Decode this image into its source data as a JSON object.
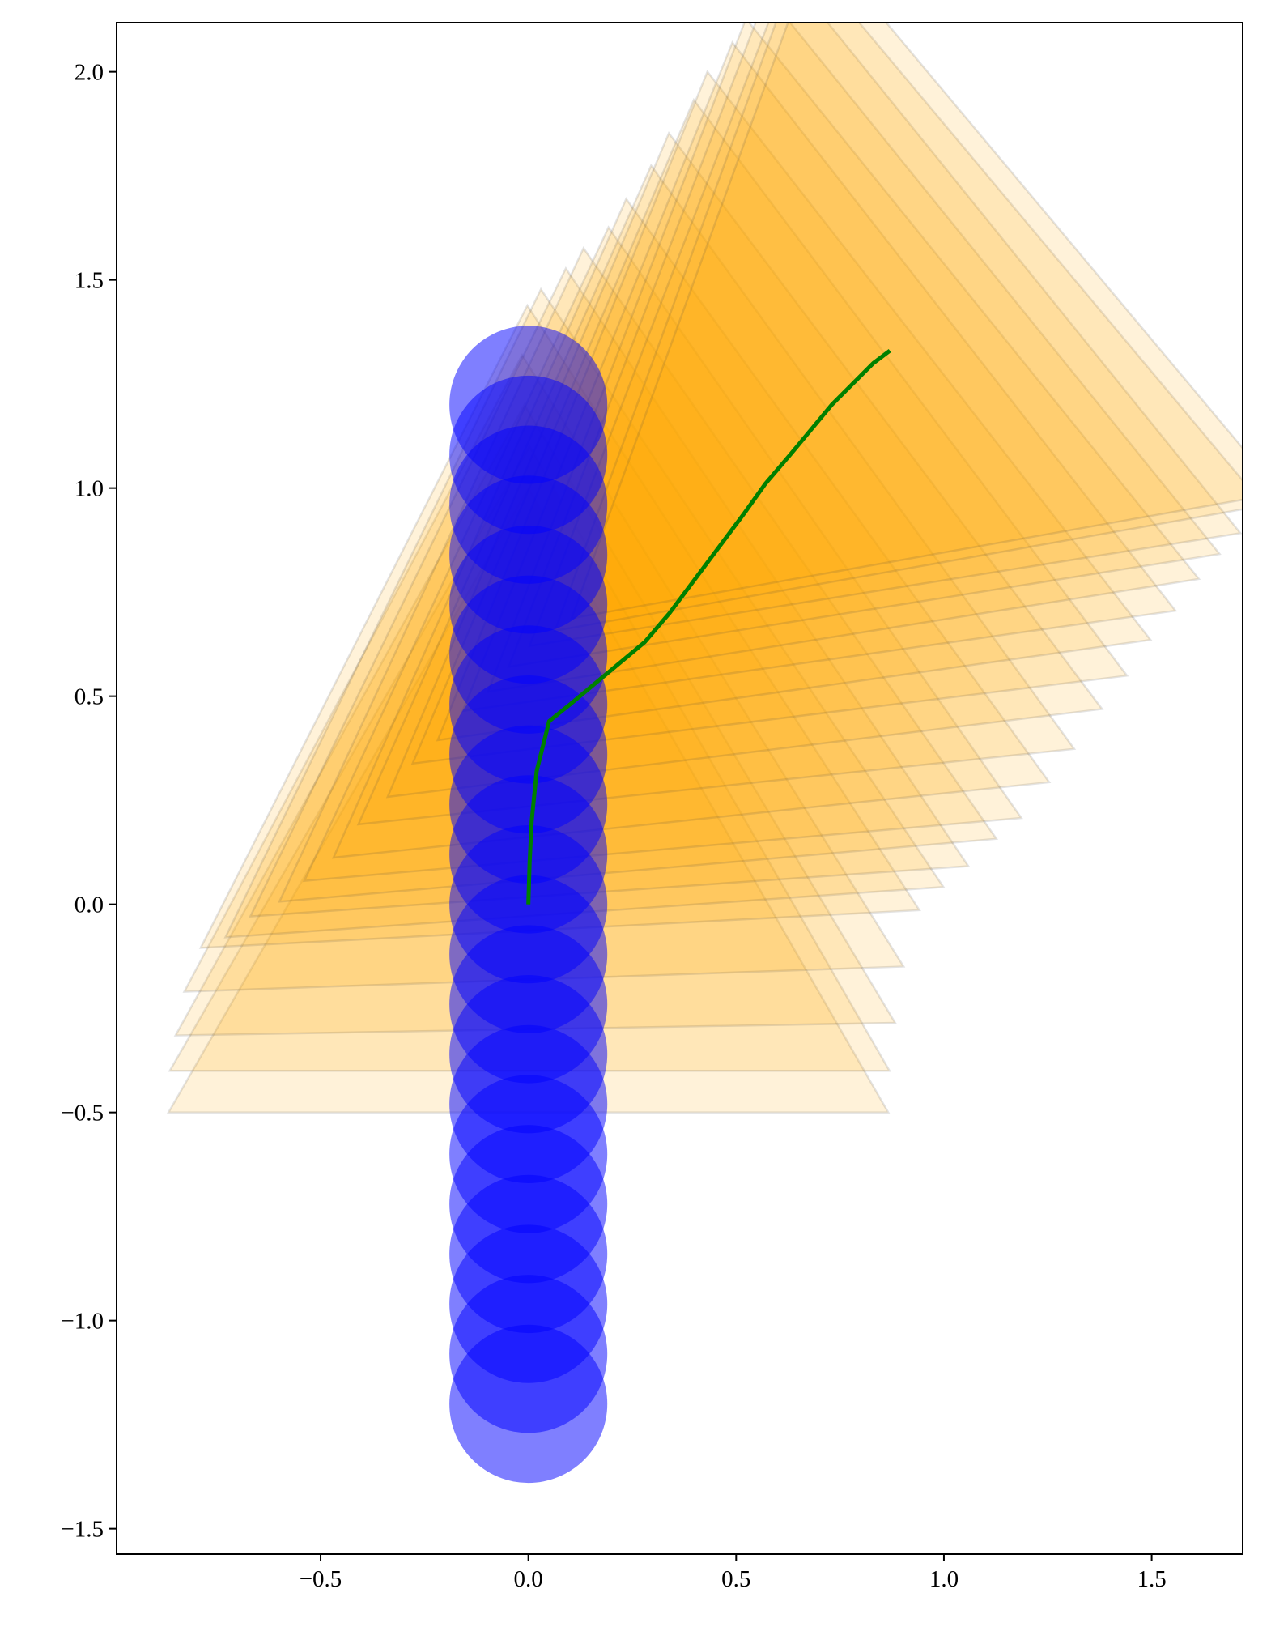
{
  "chart_data": {
    "type": "trajectory",
    "xlim": [
      -0.991,
      1.719
    ],
    "ylim": [
      -1.561,
      2.118
    ],
    "xticks": [
      {
        "value": -0.5,
        "label": "−0.5"
      },
      {
        "value": 0,
        "label": "0.0"
      },
      {
        "value": 0.5,
        "label": "0.5"
      },
      {
        "value": 1,
        "label": "1.0"
      },
      {
        "value": 1.5,
        "label": "1.5"
      }
    ],
    "yticks": [
      {
        "value": -1.5,
        "label": "−1.5"
      },
      {
        "value": -1,
        "label": "−1.0"
      },
      {
        "value": -0.5,
        "label": "−0.5"
      },
      {
        "value": 0,
        "label": "0.0"
      },
      {
        "value": 0.5,
        "label": "0.5"
      },
      {
        "value": 1,
        "label": "1.0"
      },
      {
        "value": 1.5,
        "label": "1.5"
      },
      {
        "value": 2,
        "label": "2.0"
      }
    ],
    "circles": {
      "color": "blue",
      "radius": 0.19,
      "x": [
        0,
        0,
        0,
        0,
        0,
        0,
        0,
        0,
        0,
        0,
        0,
        0,
        0,
        0,
        0,
        0,
        0,
        0,
        0,
        0,
        0
      ],
      "y": [
        -1.2,
        -1.08,
        -0.96,
        -0.84,
        -0.72,
        -0.6,
        -0.48,
        -0.36,
        -0.24,
        -0.12,
        0,
        0.12,
        0.24,
        0.36,
        0.48,
        0.6,
        0.72,
        0.84,
        0.96,
        1.08,
        1.2
      ]
    },
    "triangles": {
      "color": "orange",
      "radius": 1,
      "x": [
        0,
        0.003,
        0.008,
        0.02,
        0.05,
        0.1,
        0.16,
        0.22,
        0.28,
        0.34,
        0.4,
        0.46,
        0.52,
        0.57,
        0.63,
        0.68,
        0.73,
        0.78,
        0.83,
        0.87
      ],
      "y": [
        0,
        0.1,
        0.2,
        0.32,
        0.44,
        0.48,
        0.53,
        0.58,
        0.63,
        0.7,
        0.78,
        0.86,
        0.94,
        1.01,
        1.08,
        1.14,
        1.2,
        1.25,
        1.3,
        1.33
      ],
      "angle": [
        0,
        0,
        1,
        2,
        3,
        4,
        4,
        5,
        5,
        6,
        6,
        7,
        7,
        8,
        8,
        9,
        9,
        9,
        10,
        10
      ]
    },
    "line_color": "green"
  }
}
